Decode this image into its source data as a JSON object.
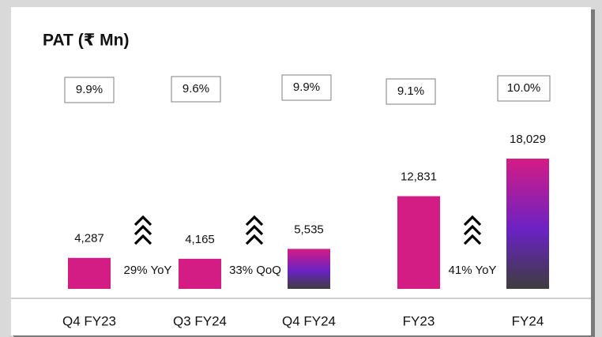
{
  "chart_data": {
    "type": "bar",
    "title": "PAT (₹ Mn)",
    "categories": [
      "Q4 FY23",
      "Q3 FY24",
      "Q4 FY24",
      "FY23",
      "FY24"
    ],
    "values": [
      4287,
      4165,
      5535,
      12831,
      18029
    ],
    "value_labels": [
      "4,287",
      "4,165",
      "5,535",
      "12,831",
      "18,029"
    ],
    "color": "#d41c85",
    "gradient_colors": [
      "#d41c85",
      "#6a22c4",
      "#3d3d3d"
    ],
    "bar_styles": [
      "solid",
      "solid",
      "gradient",
      "solid",
      "gradient"
    ],
    "margins": {
      "values": [
        9.9,
        9.6,
        9.9,
        9.1,
        10.0
      ],
      "value_labels": [
        "9.9%",
        "9.6%",
        "9.9%",
        "9.1%",
        "10.0%"
      ]
    },
    "annotations": [
      "29% YoY",
      "33% QoQ",
      "41% YoY"
    ]
  }
}
